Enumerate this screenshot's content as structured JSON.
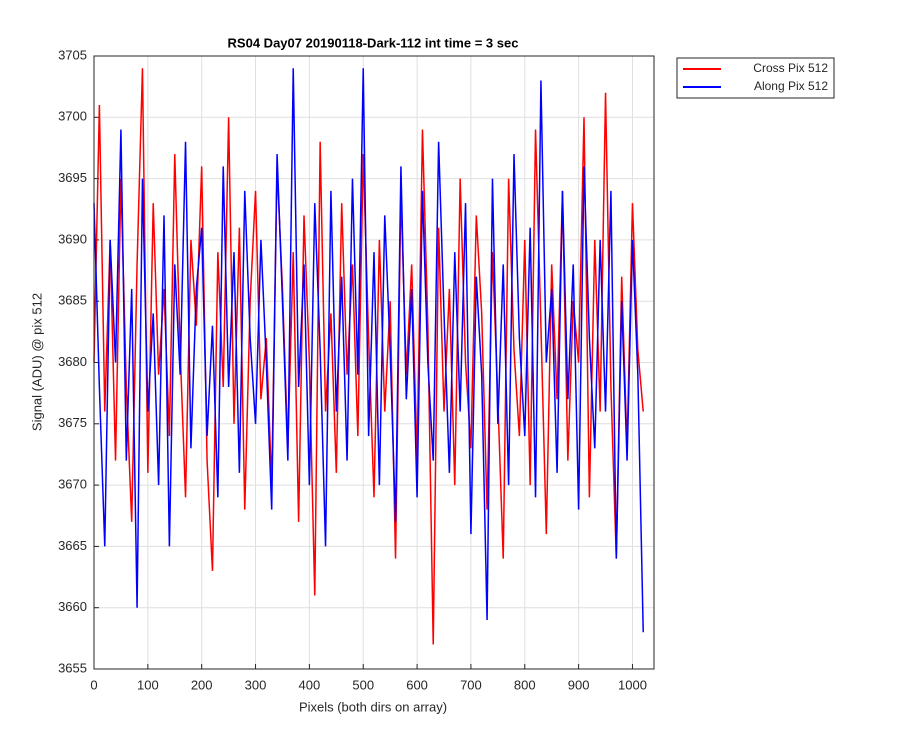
{
  "chart_data": {
    "type": "line",
    "title": "RS04 Day07 20190118-Dark-112 int time = 3 sec",
    "xlabel": "Pixels (both dirs on array)",
    "ylabel": "Signal (ADU) @ pix 512",
    "x": [
      0,
      10,
      20,
      30,
      40,
      50,
      60,
      70,
      80,
      90,
      100,
      110,
      120,
      130,
      140,
      150,
      160,
      170,
      180,
      190,
      200,
      210,
      220,
      230,
      240,
      250,
      260,
      270,
      280,
      290,
      300,
      310,
      320,
      330,
      340,
      350,
      360,
      370,
      380,
      390,
      400,
      410,
      420,
      430,
      440,
      450,
      460,
      470,
      480,
      490,
      500,
      510,
      520,
      530,
      540,
      550,
      560,
      570,
      580,
      590,
      600,
      610,
      620,
      630,
      640,
      650,
      660,
      670,
      680,
      690,
      700,
      710,
      720,
      730,
      740,
      750,
      760,
      770,
      780,
      790,
      800,
      810,
      820,
      830,
      840,
      850,
      860,
      870,
      880,
      890,
      900,
      910,
      920,
      930,
      940,
      950,
      960,
      970,
      980,
      990,
      1000,
      1010,
      1020
    ],
    "series": [
      {
        "name": "Cross Pix 512",
        "color": "#ff0000",
        "values": [
          3680,
          3701,
          3676,
          3690,
          3672,
          3695,
          3678,
          3667,
          3688,
          3704,
          3671,
          3693,
          3679,
          3686,
          3674,
          3697,
          3681,
          3669,
          3690,
          3683,
          3696,
          3672,
          3663,
          3689,
          3678,
          3700,
          3675,
          3691,
          3668,
          3685,
          3694,
          3677,
          3682,
          3670,
          3696,
          3686,
          3673,
          3689,
          3667,
          3692,
          3680,
          3661,
          3698,
          3676,
          3684,
          3671,
          3693,
          3679,
          3688,
          3674,
          3697,
          3682,
          3669,
          3690,
          3676,
          3685,
          3664,
          3694,
          3679,
          3688,
          3672,
          3699,
          3683,
          3657,
          3691,
          3676,
          3686,
          3670,
          3695,
          3680,
          3673,
          3692,
          3684,
          3668,
          3689,
          3677,
          3664,
          3695,
          3681,
          3674,
          3690,
          3670,
          3699,
          3683,
          3666,
          3688,
          3677,
          3694,
          3672,
          3685,
          3680,
          3700,
          3669,
          3690,
          3676,
          3702,
          3678,
          3664,
          3687,
          3673,
          3693,
          3681,
          3676
        ]
      },
      {
        "name": "Along Pix 512",
        "color": "#0000ff",
        "values": [
          3693,
          3678,
          3665,
          3690,
          3680,
          3699,
          3672,
          3686,
          3660,
          3695,
          3676,
          3684,
          3670,
          3692,
          3665,
          3688,
          3679,
          3698,
          3673,
          3686,
          3691,
          3674,
          3683,
          3669,
          3696,
          3678,
          3689,
          3671,
          3694,
          3682,
          3675,
          3690,
          3680,
          3668,
          3697,
          3685,
          3672,
          3704,
          3678,
          3688,
          3670,
          3693,
          3681,
          3665,
          3694,
          3676,
          3687,
          3672,
          3695,
          3679,
          3704,
          3674,
          3689,
          3670,
          3692,
          3681,
          3667,
          3696,
          3677,
          3686,
          3669,
          3694,
          3680,
          3672,
          3698,
          3684,
          3671,
          3689,
          3676,
          3693,
          3666,
          3687,
          3679,
          3659,
          3695,
          3675,
          3688,
          3670,
          3697,
          3682,
          3674,
          3691,
          3669,
          3703,
          3680,
          3686,
          3671,
          3694,
          3677,
          3688,
          3668,
          3696,
          3682,
          3673,
          3690,
          3676,
          3694,
          3664,
          3685,
          3672,
          3690,
          3679,
          3658
        ]
      }
    ],
    "xlim": [
      0,
      1040
    ],
    "ylim": [
      3655,
      3705
    ],
    "xticks": [
      0,
      100,
      200,
      300,
      400,
      500,
      600,
      700,
      800,
      900,
      1000
    ],
    "yticks": [
      3655,
      3660,
      3665,
      3670,
      3675,
      3680,
      3685,
      3690,
      3695,
      3700,
      3705
    ],
    "grid": true,
    "legend": "northeast-outside"
  }
}
